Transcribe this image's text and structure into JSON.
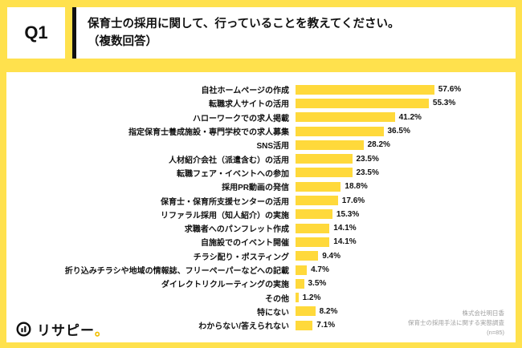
{
  "header": {
    "q_label": "Q1",
    "title_line1": "保育士の採用に関して、行っていることを教えてください。",
    "title_line2": "（複数回答）"
  },
  "chart_data": {
    "type": "bar",
    "orientation": "horizontal",
    "title": "保育士の採用に関して、行っていることを教えてください。（複数回答）",
    "categories": [
      "自社ホームページの作成",
      "転職求人サイトの活用",
      "ハローワークでの求人掲載",
      "指定保育士養成施設・専門学校での求人募集",
      "SNS活用",
      "人材紹介会社（派遣含む）の活用",
      "転職フェア・イベントへの参加",
      "採用PR動画の発信",
      "保育士・保育所支援センターの活用",
      "リファラル採用（知人紹介）の実施",
      "求職者へのパンフレット作成",
      "自施設でのイベント開催",
      "チラシ配り・ポスティング",
      "折り込みチラシや地域の情報誌、フリーペーパーなどへの記載",
      "ダイレクトリクルーティングの実施",
      "その他",
      "特にない",
      "わからない/答えられない"
    ],
    "values": [
      57.6,
      55.3,
      41.2,
      36.5,
      28.2,
      23.5,
      23.5,
      18.8,
      17.6,
      15.3,
      14.1,
      14.1,
      9.4,
      4.7,
      3.5,
      1.2,
      8.2,
      7.1
    ],
    "value_labels": [
      "57.6%",
      "55.3%",
      "41.2%",
      "36.5%",
      "28.2%",
      "23.5%",
      "23.5%",
      "18.8%",
      "17.6%",
      "15.3%",
      "14.1%",
      "14.1%",
      "9.4%",
      "4.7%",
      "3.5%",
      "1.2%",
      "8.2%",
      "7.1%"
    ],
    "xlim": [
      0,
      60
    ],
    "grid": false,
    "legend": "none",
    "bar_color": "#FFD93B"
  },
  "footer": {
    "source_line1": "株式会社明日香",
    "source_line2": "保育士の採用手法に関する実態調査",
    "source_line3": "(n=85)",
    "logo_text": "リサピー",
    "logo_period": "。"
  },
  "colors": {
    "page_background": "#FFE14D",
    "panel_background": "#FFFFFF",
    "bar": "#FFD93B",
    "text": "#111111",
    "source_text": "#9E9E9E"
  }
}
